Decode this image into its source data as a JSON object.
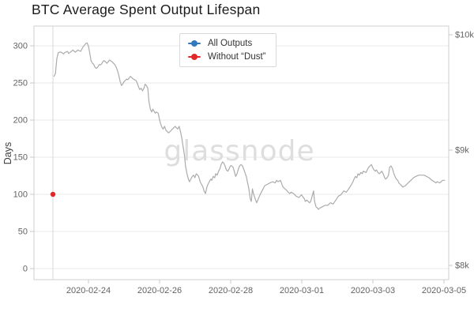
{
  "title": "BTC Average Spent Output Lifespan",
  "watermark": "glassnode",
  "legend": {
    "position": "top-center",
    "items": [
      {
        "label": "All Outputs",
        "color": "#3178bd"
      },
      {
        "label": "Without “Dust”",
        "color": "#e02828"
      }
    ]
  },
  "axes": {
    "left": {
      "label": "Days",
      "ticks": [
        0,
        50,
        100,
        150,
        200,
        250,
        300
      ]
    },
    "right": {
      "ticks": [
        {
          "label": "$10k",
          "usd": 10000
        },
        {
          "label": "$9k",
          "usd": 9000
        },
        {
          "label": "$8k",
          "usd": 8000
        }
      ]
    },
    "x": {
      "ticks": [
        {
          "label": "2020-02-24",
          "t": 1
        },
        {
          "label": "2020-02-26",
          "t": 3
        },
        {
          "label": "2020-02-28",
          "t": 5
        },
        {
          "label": "2020-03-01",
          "t": 7
        },
        {
          "label": "2020-03-03",
          "t": 9
        },
        {
          "label": "2020-03-05",
          "t": 11
        }
      ]
    }
  },
  "chart_data": {
    "type": "line",
    "title": "BTC Average Spent Output Lifespan",
    "grid": "horizontal-only",
    "legend_position": "top-center",
    "x_axis": {
      "start_date": "2020-02-23",
      "end_date": "2020-03-05",
      "t_unit": "days since 2020-02-23",
      "tick_labels": [
        "2020-02-24",
        "2020-02-26",
        "2020-02-28",
        "2020-03-01",
        "2020-03-03",
        "2020-03-05"
      ]
    },
    "y_left": {
      "label": "Days",
      "tick_values": [
        0,
        50,
        100,
        150,
        200,
        250,
        300
      ],
      "visible_range": [
        -15,
        327
      ]
    },
    "y_right": {
      "tick_labels": [
        "$8k",
        "$9k",
        "$10k"
      ],
      "visible_range_usd": [
        7877,
        10075
      ]
    },
    "series": [
      {
        "name": "All Outputs",
        "color": "#3178bd",
        "axis": "left_days",
        "points": []
      },
      {
        "name": "Without “Dust”",
        "color": "#e02828",
        "axis": "left_days",
        "points": [
          [
            0,
            100
          ]
        ]
      },
      {
        "name": "btc-price-gray-line",
        "color": "#ababab",
        "axis": "right_usd",
        "points": [
          [
            0.03,
            9640
          ],
          [
            0.07,
            9664
          ],
          [
            0.09,
            9726
          ],
          [
            0.11,
            9795
          ],
          [
            0.15,
            9845
          ],
          [
            0.22,
            9851
          ],
          [
            0.3,
            9834
          ],
          [
            0.33,
            9845
          ],
          [
            0.41,
            9856
          ],
          [
            0.44,
            9838
          ],
          [
            0.52,
            9856
          ],
          [
            0.56,
            9868
          ],
          [
            0.63,
            9849
          ],
          [
            0.7,
            9868
          ],
          [
            0.78,
            9856
          ],
          [
            0.85,
            9897
          ],
          [
            0.93,
            9925
          ],
          [
            0.96,
            9929
          ],
          [
            1.0,
            9902
          ],
          [
            1.04,
            9834
          ],
          [
            1.07,
            9776
          ],
          [
            1.11,
            9753
          ],
          [
            1.15,
            9742
          ],
          [
            1.18,
            9719
          ],
          [
            1.22,
            9708
          ],
          [
            1.26,
            9719
          ],
          [
            1.3,
            9742
          ],
          [
            1.33,
            9738
          ],
          [
            1.37,
            9747
          ],
          [
            1.41,
            9769
          ],
          [
            1.44,
            9776
          ],
          [
            1.48,
            9765
          ],
          [
            1.52,
            9753
          ],
          [
            1.59,
            9781
          ],
          [
            1.67,
            9765
          ],
          [
            1.74,
            9742
          ],
          [
            1.78,
            9719
          ],
          [
            1.82,
            9685
          ],
          [
            1.85,
            9651
          ],
          [
            1.89,
            9594
          ],
          [
            1.93,
            9560
          ],
          [
            1.96,
            9571
          ],
          [
            2.0,
            9594
          ],
          [
            2.04,
            9605
          ],
          [
            2.07,
            9616
          ],
          [
            2.11,
            9610
          ],
          [
            2.15,
            9628
          ],
          [
            2.18,
            9639
          ],
          [
            2.22,
            9628
          ],
          [
            2.26,
            9616
          ],
          [
            2.33,
            9605
          ],
          [
            2.37,
            9582
          ],
          [
            2.41,
            9548
          ],
          [
            2.44,
            9525
          ],
          [
            2.48,
            9536
          ],
          [
            2.52,
            9514
          ],
          [
            2.56,
            9536
          ],
          [
            2.59,
            9571
          ],
          [
            2.63,
            9560
          ],
          [
            2.67,
            9536
          ],
          [
            2.7,
            9423
          ],
          [
            2.74,
            9354
          ],
          [
            2.78,
            9331
          ],
          [
            2.81,
            9354
          ],
          [
            2.88,
            9320
          ],
          [
            2.91,
            9331
          ],
          [
            2.96,
            9320
          ],
          [
            2.99,
            9274
          ],
          [
            3.03,
            9228
          ],
          [
            3.07,
            9194
          ],
          [
            3.1,
            9183
          ],
          [
            3.14,
            9206
          ],
          [
            3.18,
            9171
          ],
          [
            3.22,
            9160
          ],
          [
            3.25,
            9149
          ],
          [
            3.29,
            9160
          ],
          [
            3.33,
            9171
          ],
          [
            3.36,
            9183
          ],
          [
            3.4,
            9194
          ],
          [
            3.44,
            9206
          ],
          [
            3.47,
            9194
          ],
          [
            3.51,
            9183
          ],
          [
            3.55,
            9206
          ],
          [
            3.58,
            9171
          ],
          [
            3.62,
            9114
          ],
          [
            3.66,
            9034
          ],
          [
            3.7,
            8954
          ],
          [
            3.73,
            8863
          ],
          [
            3.77,
            8795
          ],
          [
            3.81,
            8749
          ],
          [
            3.84,
            8726
          ],
          [
            3.88,
            8749
          ],
          [
            3.92,
            8772
          ],
          [
            3.96,
            8783
          ],
          [
            3.99,
            8760
          ],
          [
            4.03,
            8795
          ],
          [
            4.07,
            8783
          ],
          [
            4.1,
            8772
          ],
          [
            4.14,
            8726
          ],
          [
            4.18,
            8703
          ],
          [
            4.22,
            8680
          ],
          [
            4.25,
            8646
          ],
          [
            4.29,
            8623
          ],
          [
            4.33,
            8680
          ],
          [
            4.36,
            8703
          ],
          [
            4.4,
            8726
          ],
          [
            4.44,
            8749
          ],
          [
            4.47,
            8738
          ],
          [
            4.51,
            8772
          ],
          [
            4.55,
            8760
          ],
          [
            4.58,
            8795
          ],
          [
            4.62,
            8783
          ],
          [
            4.66,
            8817
          ],
          [
            4.7,
            8840
          ],
          [
            4.73,
            8875
          ],
          [
            4.77,
            8897
          ],
          [
            4.81,
            8886
          ],
          [
            4.84,
            8863
          ],
          [
            4.88,
            8829
          ],
          [
            4.92,
            8817
          ],
          [
            4.96,
            8840
          ],
          [
            4.99,
            8863
          ],
          [
            5.03,
            8863
          ],
          [
            5.07,
            8851
          ],
          [
            5.1,
            8817
          ],
          [
            5.14,
            8772
          ],
          [
            5.18,
            8795
          ],
          [
            5.21,
            8829
          ],
          [
            5.25,
            8863
          ],
          [
            5.29,
            8875
          ],
          [
            5.33,
            8863
          ],
          [
            5.36,
            8840
          ],
          [
            5.4,
            8806
          ],
          [
            5.44,
            8772
          ],
          [
            5.47,
            8726
          ],
          [
            5.51,
            8669
          ],
          [
            5.55,
            8578
          ],
          [
            5.58,
            8555
          ],
          [
            5.61,
            8664
          ],
          [
            5.64,
            8623
          ],
          [
            5.69,
            8576
          ],
          [
            5.73,
            8543
          ],
          [
            5.81,
            8601
          ],
          [
            5.88,
            8646
          ],
          [
            5.96,
            8692
          ],
          [
            6.03,
            8703
          ],
          [
            6.1,
            8715
          ],
          [
            6.18,
            8726
          ],
          [
            6.25,
            8715
          ],
          [
            6.29,
            8738
          ],
          [
            6.33,
            8726
          ],
          [
            6.4,
            8738
          ],
          [
            6.47,
            8680
          ],
          [
            6.55,
            8658
          ],
          [
            6.62,
            8635
          ],
          [
            6.66,
            8623
          ],
          [
            6.7,
            8635
          ],
          [
            6.77,
            8623
          ],
          [
            6.84,
            8601
          ],
          [
            6.92,
            8589
          ],
          [
            6.99,
            8612
          ],
          [
            7.07,
            8578
          ],
          [
            7.1,
            8555
          ],
          [
            7.14,
            8567
          ],
          [
            7.22,
            8543
          ],
          [
            7.25,
            8555
          ],
          [
            7.29,
            8601
          ],
          [
            7.33,
            8646
          ],
          [
            7.36,
            8555
          ],
          [
            7.4,
            8509
          ],
          [
            7.44,
            8498
          ],
          [
            7.47,
            8486
          ],
          [
            7.51,
            8498
          ],
          [
            7.58,
            8509
          ],
          [
            7.66,
            8521
          ],
          [
            7.73,
            8521
          ],
          [
            7.81,
            8543
          ],
          [
            7.88,
            8532
          ],
          [
            7.96,
            8567
          ],
          [
            8.03,
            8601
          ],
          [
            8.1,
            8612
          ],
          [
            8.18,
            8646
          ],
          [
            8.25,
            8635
          ],
          [
            8.33,
            8669
          ],
          [
            8.4,
            8703
          ],
          [
            8.44,
            8726
          ],
          [
            8.47,
            8749
          ],
          [
            8.51,
            8772
          ],
          [
            8.55,
            8760
          ],
          [
            8.58,
            8795
          ],
          [
            8.62,
            8783
          ],
          [
            8.66,
            8806
          ],
          [
            8.7,
            8795
          ],
          [
            8.73,
            8817
          ],
          [
            8.81,
            8806
          ],
          [
            8.84,
            8829
          ],
          [
            8.88,
            8851
          ],
          [
            8.92,
            8863
          ],
          [
            8.96,
            8875
          ],
          [
            8.99,
            8851
          ],
          [
            9.03,
            8829
          ],
          [
            9.07,
            8817
          ],
          [
            9.1,
            8829
          ],
          [
            9.14,
            8806
          ],
          [
            9.18,
            8795
          ],
          [
            9.22,
            8806
          ],
          [
            9.25,
            8817
          ],
          [
            9.29,
            8795
          ],
          [
            9.33,
            8760
          ],
          [
            9.36,
            8749
          ],
          [
            9.4,
            8760
          ],
          [
            9.44,
            8783
          ],
          [
            9.47,
            8851
          ],
          [
            9.51,
            8863
          ],
          [
            9.55,
            8840
          ],
          [
            9.58,
            8806
          ],
          [
            9.62,
            8772
          ],
          [
            9.66,
            8749
          ],
          [
            9.7,
            8738
          ],
          [
            9.73,
            8715
          ],
          [
            9.77,
            8703
          ],
          [
            9.81,
            8692
          ],
          [
            9.84,
            8680
          ],
          [
            9.92,
            8692
          ],
          [
            9.99,
            8715
          ],
          [
            10.07,
            8738
          ],
          [
            10.14,
            8760
          ],
          [
            10.21,
            8772
          ],
          [
            10.29,
            8783
          ],
          [
            10.36,
            8783
          ],
          [
            10.44,
            8783
          ],
          [
            10.51,
            8772
          ],
          [
            10.58,
            8760
          ],
          [
            10.66,
            8738
          ],
          [
            10.73,
            8726
          ],
          [
            10.77,
            8715
          ],
          [
            10.81,
            8726
          ],
          [
            10.88,
            8715
          ],
          [
            10.92,
            8726
          ],
          [
            10.96,
            8738
          ],
          [
            11.02,
            8738
          ]
        ]
      }
    ]
  }
}
